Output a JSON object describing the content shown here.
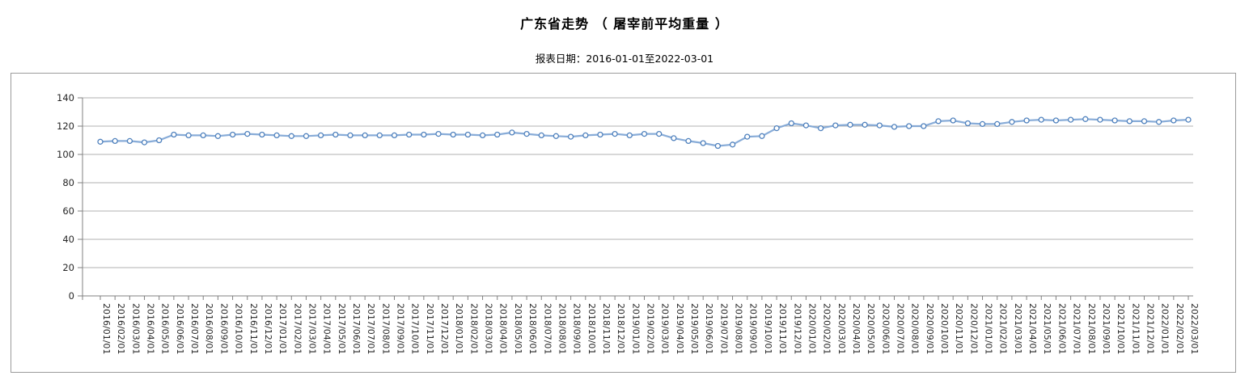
{
  "header": {
    "title": "广东省走势 （ 屠宰前平均重量 ）",
    "subtitle": "报表日期：2016-01-01至2022-03-01"
  },
  "chart_data": {
    "type": "line",
    "title": "广东省走势（屠宰前平均重量）",
    "xlabel": "",
    "ylabel": "",
    "ylim": [
      0,
      140
    ],
    "yticks": [
      0,
      20,
      40,
      60,
      80,
      100,
      120,
      140
    ],
    "grid": true,
    "legend_position": "none",
    "x": [
      "2016/01/01",
      "2016/02/01",
      "2016/03/01",
      "2016/04/01",
      "2016/05/01",
      "2016/06/01",
      "2016/07/01",
      "2016/08/01",
      "2016/09/01",
      "2016/10/01",
      "2016/11/01",
      "2016/12/01",
      "2017/01/01",
      "2017/02/01",
      "2017/03/01",
      "2017/04/01",
      "2017/05/01",
      "2017/06/01",
      "2017/07/01",
      "2017/08/01",
      "2017/09/01",
      "2017/10/01",
      "2017/11/01",
      "2017/12/01",
      "2018/01/01",
      "2018/02/01",
      "2018/03/01",
      "2018/04/01",
      "2018/05/01",
      "2018/06/01",
      "2018/07/01",
      "2018/08/01",
      "2018/09/01",
      "2018/10/01",
      "2018/11/01",
      "2018/12/01",
      "2019/01/01",
      "2019/02/01",
      "2019/03/01",
      "2019/04/01",
      "2019/05/01",
      "2019/06/01",
      "2019/07/01",
      "2019/08/01",
      "2019/09/01",
      "2019/10/01",
      "2019/11/01",
      "2019/12/01",
      "2020/01/01",
      "2020/02/01",
      "2020/03/01",
      "2020/04/01",
      "2020/05/01",
      "2020/06/01",
      "2020/07/01",
      "2020/08/01",
      "2020/09/01",
      "2020/10/01",
      "2020/11/01",
      "2020/12/01",
      "2021/01/01",
      "2021/02/01",
      "2021/03/01",
      "2021/04/01",
      "2021/05/01",
      "2021/06/01",
      "2021/07/01",
      "2021/08/01",
      "2021/09/01",
      "2021/10/01",
      "2021/11/01",
      "2021/12/01",
      "2022/01/01",
      "2022/02/01",
      "2022/03/01"
    ],
    "series": [
      {
        "name": "屠宰前平均重量",
        "values": [
          109,
          109.5,
          109.5,
          108.5,
          110,
          114,
          113.5,
          113.5,
          113,
          114,
          114.5,
          114,
          113.5,
          113,
          113,
          113.5,
          114,
          113.5,
          113.5,
          113.5,
          113.5,
          114,
          114,
          114.5,
          114,
          114,
          113.5,
          114,
          115.5,
          114.5,
          113.5,
          113,
          112.5,
          113.5,
          114,
          114.5,
          113.5,
          114.5,
          114.5,
          111.5,
          109.5,
          108,
          106,
          107,
          112.5,
          113,
          118.5,
          122,
          120.5,
          118.5,
          120.5,
          121,
          121,
          120.5,
          119.5,
          120,
          120,
          123.5,
          124,
          122,
          121.5,
          121.5,
          123,
          124,
          124.5,
          124,
          124.5,
          125,
          124.5,
          124,
          123.5,
          123.5,
          123,
          124,
          124.5
        ]
      }
    ],
    "colors": {
      "line": "#7ba3d4",
      "marker_stroke": "#4f81bd",
      "marker_fill": "#ffffff",
      "grid": "#b2b2b2",
      "axis": "#808080",
      "tick_text": "#262626"
    }
  }
}
